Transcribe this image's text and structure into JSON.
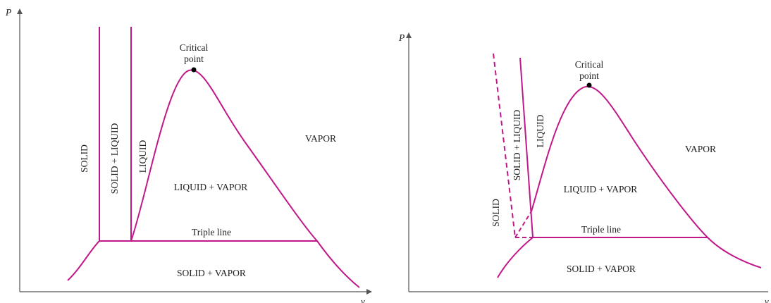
{
  "colors": {
    "curve": "#c0188a",
    "axis": "#555555",
    "text": "#222222",
    "critical_point": "#000000"
  },
  "left_diagram": {
    "y_axis_label": "P",
    "x_axis_label": "v",
    "labels": {
      "critical_point_line1": "Critical",
      "critical_point_line2": "point",
      "solid": "SOLID",
      "solid_liquid": "SOLID + LIQUID",
      "liquid": "LIQUID",
      "liquid_vapor": "LIQUID + VAPOR",
      "vapor": "VAPOR",
      "triple_line": "Triple line",
      "solid_vapor": "SOLID + VAPOR"
    }
  },
  "right_diagram": {
    "y_axis_label": "P",
    "x_axis_label": "v",
    "labels": {
      "critical_point_line1": "Critical",
      "critical_point_line2": "point",
      "solid": "SOLID",
      "solid_liquid": "SOLID + LIQUID",
      "liquid": "LIQUID",
      "liquid_vapor": "LIQUID + VAPOR",
      "vapor": "VAPOR",
      "triple_line": "Triple line",
      "solid_vapor": "SOLID + VAPOR"
    }
  }
}
